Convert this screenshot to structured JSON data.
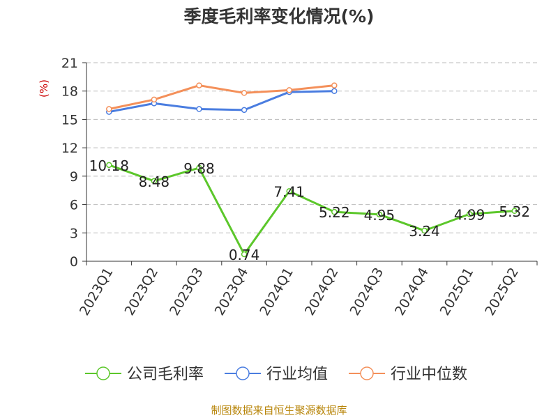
{
  "title": "季度毛利率变化情况(%)",
  "source": "制图数据来自恒生聚源数据库",
  "chart_data": {
    "type": "line",
    "title": "季度毛利率变化情况(%)",
    "ylabel": "(%)",
    "ylim": [
      0,
      21
    ],
    "yticks": [
      0,
      3,
      6,
      9,
      12,
      15,
      18,
      21
    ],
    "grid": true,
    "legend_placement": "bottom",
    "categories": [
      "2023Q1",
      "2023Q2",
      "2023Q3",
      "2023Q4",
      "2024Q1",
      "2024Q2",
      "2024Q3",
      "2024Q4",
      "2025Q1",
      "2025Q2"
    ],
    "series": [
      {
        "name": "公司毛利率",
        "color": "#5cc72b",
        "show_labels": true,
        "values": [
          10.18,
          8.48,
          9.88,
          0.74,
          7.41,
          5.22,
          4.95,
          3.24,
          4.99,
          5.32
        ]
      },
      {
        "name": "行业均值",
        "color": "#4a7de0",
        "show_labels": false,
        "values": [
          15.8,
          16.7,
          16.1,
          16.0,
          17.9,
          18.0,
          null,
          null,
          null,
          null
        ]
      },
      {
        "name": "行业中位数",
        "color": "#f4905a",
        "show_labels": false,
        "values": [
          16.1,
          17.1,
          18.6,
          17.8,
          18.1,
          18.6,
          null,
          null,
          null,
          null
        ]
      }
    ]
  }
}
